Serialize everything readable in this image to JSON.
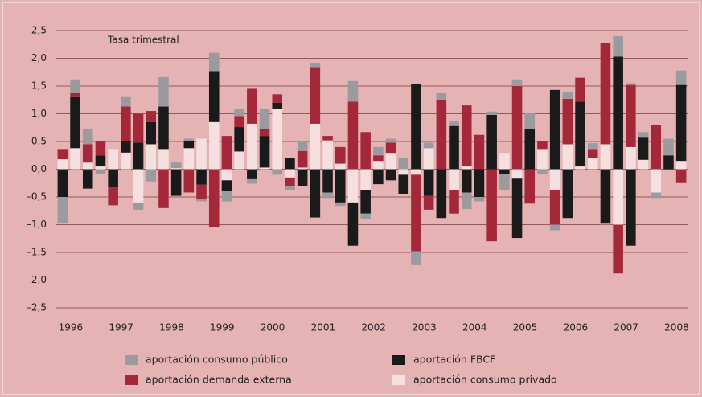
{
  "chart_data": {
    "type": "bar",
    "stacked": true,
    "annotation": "Tasa trimestral",
    "categories": [
      "1996",
      null,
      null,
      null,
      "1997",
      null,
      null,
      null,
      "1998",
      null,
      null,
      null,
      "1999",
      null,
      null,
      null,
      "2000",
      null,
      null,
      null,
      "2001",
      null,
      null,
      null,
      "2002",
      null,
      null,
      null,
      "2003",
      null,
      null,
      null,
      "2004",
      null,
      null,
      null,
      "2005",
      null,
      null,
      null,
      "2006",
      null,
      null,
      null,
      "2007",
      null,
      null,
      null,
      "2008",
      null
    ],
    "series": [
      {
        "name": "aportación consumo público",
        "color": "#9b9a9f",
        "values": [
          -0.48,
          0.25,
          0.28,
          -0.08,
          0,
          0.17,
          -0.13,
          -0.22,
          0.53,
          0.1,
          0.05,
          -0.05,
          0.33,
          -0.18,
          0.12,
          -0.08,
          0.35,
          -0.1,
          -0.08,
          0.18,
          0.08,
          -0.1,
          -0.06,
          0.37,
          -0.1,
          0.15,
          0.07,
          0.2,
          -0.25,
          0.1,
          0.12,
          0.08,
          -0.3,
          -0.08,
          0.06,
          -0.3,
          0.12,
          0.3,
          -0.08,
          -0.1,
          0.13,
          0,
          0.12,
          -0.03,
          0.37,
          0.03,
          0.1,
          -0.1,
          0.3,
          0.26
        ]
      },
      {
        "name": "aportación FBCF",
        "color": "#1b1a1a",
        "values": [
          -0.5,
          0.92,
          -0.35,
          0.2,
          -0.33,
          0.2,
          0.48,
          0.4,
          0.78,
          -0.48,
          0.12,
          -0.28,
          0.92,
          -0.2,
          0.44,
          -0.18,
          0.57,
          0.12,
          0.2,
          -0.3,
          -0.87,
          -0.42,
          -0.6,
          -0.78,
          -0.42,
          -0.27,
          -0.2,
          -0.35,
          1.53,
          -0.48,
          -0.88,
          0.78,
          -0.42,
          -0.5,
          0.98,
          -0.08,
          -1.07,
          0.72,
          0,
          1.43,
          -0.88,
          1.17,
          0,
          -0.97,
          2.03,
          -1.38,
          0.4,
          0,
          0.25,
          1.37
        ]
      },
      {
        "name": "aportación demanda externa",
        "color": "#a4283a",
        "values": [
          0.17,
          0.07,
          0.33,
          0.25,
          -0.32,
          0.63,
          0.52,
          0.2,
          -0.7,
          0,
          -0.42,
          -0.25,
          -1.05,
          0.6,
          0.2,
          0.63,
          0.13,
          0.15,
          -0.15,
          0.3,
          1.02,
          0.08,
          0.3,
          1.22,
          0.67,
          0.1,
          0.2,
          0,
          -1.38,
          -0.25,
          1.25,
          -0.42,
          1.1,
          0.62,
          -1.3,
          0,
          1.5,
          -0.62,
          0.15,
          -0.62,
          0.82,
          0.43,
          0.15,
          1.83,
          -0.88,
          1.12,
          0,
          0.8,
          0,
          -0.25
        ]
      },
      {
        "name": "aportación consumo privado",
        "color": "#f6dfdf",
        "values": [
          0.18,
          0.38,
          0.12,
          0.05,
          0.35,
          0.3,
          -0.6,
          0.45,
          0.35,
          0.02,
          0.38,
          0.55,
          0.85,
          -0.2,
          0.32,
          0.82,
          0.03,
          1.08,
          -0.15,
          0.03,
          0.82,
          0.52,
          0.1,
          -0.6,
          -0.38,
          0.15,
          0.28,
          -0.1,
          -0.1,
          0.38,
          0,
          -0.38,
          0.05,
          0,
          0,
          0.28,
          -0.17,
          0,
          0.35,
          -0.38,
          0.45,
          0.05,
          0.2,
          0.45,
          -1.0,
          0.4,
          0.17,
          -0.42,
          0,
          0.15
        ]
      }
    ],
    "ylim": [
      -2.5,
      2.5
    ],
    "yticks": [
      {
        "value": 2.5,
        "label": "2,5"
      },
      {
        "value": 2.0,
        "label": "2,0"
      },
      {
        "value": 1.5,
        "label": "1,5"
      },
      {
        "value": 1.0,
        "label": "1,0"
      },
      {
        "value": 0.5,
        "label": "0,5"
      },
      {
        "value": 0,
        "label": "0,0"
      },
      {
        "value": -0.5,
        "label": "–0,5"
      },
      {
        "value": -1.0,
        "label": "–1,0"
      },
      {
        "value": -1.5,
        "label": "–1,5"
      },
      {
        "value": -2.0,
        "label": "–2,0"
      },
      {
        "value": -2.5,
        "label": "–2,5"
      }
    ],
    "grid": true
  }
}
